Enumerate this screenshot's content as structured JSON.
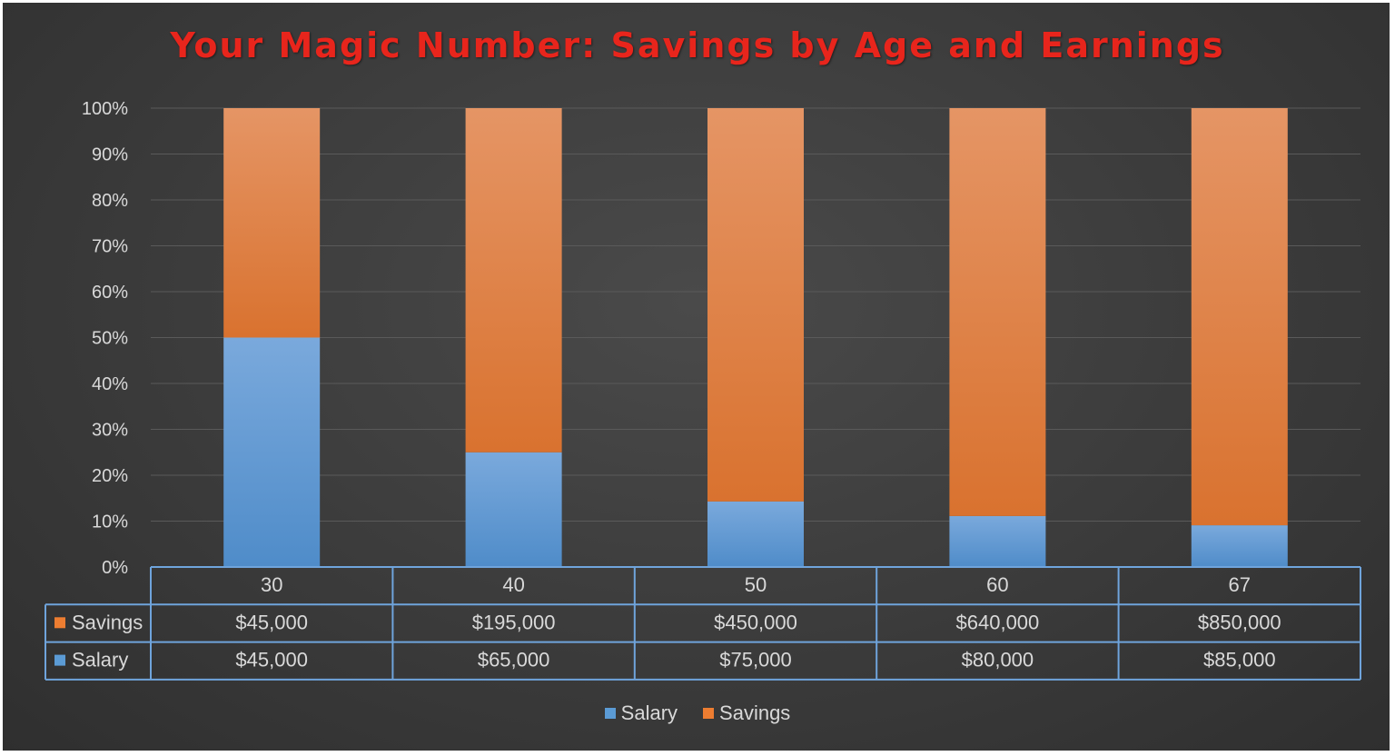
{
  "chart_data": {
    "type": "bar",
    "stacked": "percent",
    "title": "Your Magic Number: Savings by Age and Earnings",
    "categories": [
      "30",
      "40",
      "50",
      "60",
      "67"
    ],
    "series": [
      {
        "name": "Salary",
        "color": "#5b9bd5",
        "values": [
          45000,
          65000,
          75000,
          80000,
          85000
        ],
        "labels": [
          "$45,000",
          "$65,000",
          "$75,000",
          "$80,000",
          "$85,000"
        ]
      },
      {
        "name": "Savings",
        "color": "#ed7d31",
        "values": [
          45000,
          195000,
          450000,
          640000,
          850000
        ],
        "labels": [
          "$45,000",
          "$195,000",
          "$450,000",
          "$640,000",
          "$850,000"
        ]
      }
    ],
    "yticks": [
      "0%",
      "10%",
      "20%",
      "30%",
      "40%",
      "50%",
      "60%",
      "70%",
      "80%",
      "90%",
      "100%"
    ],
    "ylim": [
      0,
      100
    ],
    "grid": true,
    "legend_position": "bottom",
    "data_table": true,
    "data_table_rows": [
      "Savings",
      "Salary"
    ]
  }
}
